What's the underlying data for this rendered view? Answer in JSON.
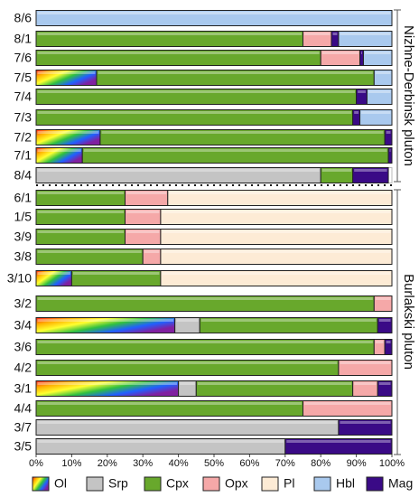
{
  "chart_data": {
    "type": "stacked-bar-horizontal",
    "categories": [
      "8/6",
      "8/1",
      "7/6",
      "7/5",
      "7/4",
      "7/3",
      "7/2",
      "7/1",
      "8/4",
      "6/1",
      "1/5",
      "3/9",
      "3/8",
      "3/10",
      "3/2",
      "3/4",
      "3/6",
      "4/2",
      "3/1",
      "4/4",
      "3/7",
      "3/5"
    ],
    "series": [
      {
        "name": "Ol",
        "color": [
          "#ff1a1a",
          "#ffb000",
          "#ffff30",
          "#30c040",
          "#2060ff",
          "#8020a0"
        ],
        "values": [
          null,
          null,
          null,
          17,
          null,
          null,
          18,
          13,
          null,
          null,
          null,
          null,
          null,
          10,
          null,
          39,
          null,
          null,
          40,
          null,
          null,
          null
        ]
      },
      {
        "name": "Srp",
        "color": "#c4c4c4",
        "values": [
          null,
          null,
          null,
          null,
          null,
          null,
          null,
          null,
          80,
          null,
          null,
          null,
          null,
          null,
          null,
          7,
          null,
          null,
          5,
          null,
          85,
          70
        ]
      },
      {
        "name": "Cpx",
        "color": "#68a82c",
        "values": [
          null,
          75,
          80,
          78,
          90,
          89,
          80,
          86,
          9,
          25,
          25,
          25,
          30,
          25,
          95,
          50,
          95,
          85,
          44,
          75,
          null,
          null
        ]
      },
      {
        "name": "Opx",
        "color": "#f5a8a8",
        "values": [
          null,
          8,
          11,
          null,
          null,
          null,
          null,
          null,
          null,
          12,
          10,
          10,
          5,
          null,
          5,
          null,
          3,
          15,
          7,
          25,
          null,
          null
        ]
      },
      {
        "name": "Pl",
        "color": "#fdebd5",
        "values": [
          null,
          null,
          null,
          null,
          null,
          null,
          null,
          null,
          null,
          63,
          65,
          65,
          65,
          65,
          null,
          null,
          null,
          null,
          null,
          null,
          null,
          null
        ]
      },
      {
        "name": "Hbl",
        "color": "#a9c9ee",
        "values": [
          100,
          15,
          8,
          5,
          7,
          9,
          null,
          null,
          null,
          null,
          null,
          null,
          null,
          null,
          null,
          null,
          null,
          null,
          null,
          null,
          null,
          null
        ]
      },
      {
        "name": "Mag",
        "color": "#3a0a86",
        "values": [
          null,
          2,
          1,
          null,
          3,
          2,
          2,
          1,
          10,
          null,
          null,
          null,
          null,
          null,
          null,
          4,
          2,
          null,
          4,
          null,
          15,
          30
        ]
      }
    ],
    "xlim": [
      0,
      100
    ],
    "xticks": [
      {
        "value": 0,
        "label": "0%"
      },
      {
        "value": 10,
        "label": "10%"
      },
      {
        "value": 20,
        "label": "20%"
      },
      {
        "value": 30,
        "label": "30%"
      },
      {
        "value": 40,
        "label": "40%"
      },
      {
        "value": 50,
        "label": "50%"
      },
      {
        "value": 60,
        "label": "60%"
      },
      {
        "value": 70,
        "label": "70%"
      },
      {
        "value": 80,
        "label": "80%"
      },
      {
        "value": 90,
        "label": "90%"
      },
      {
        "value": 100,
        "label": "100%"
      }
    ],
    "groups": [
      {
        "label": "Nizhne-Derbinsk pluton"
      },
      {
        "label": "Burlakski pluton"
      }
    ],
    "legend": "bottom"
  }
}
